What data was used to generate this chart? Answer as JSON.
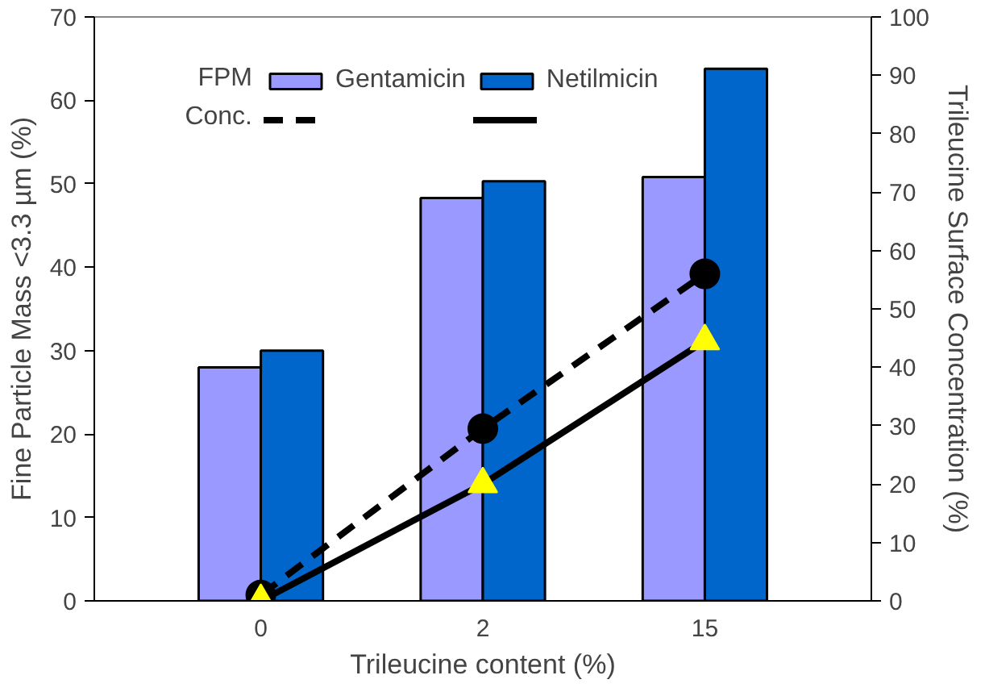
{
  "chart_data": {
    "type": "bar",
    "xlabel": "Trileucine content (%)",
    "ylabel": "Fine Particle Mass <3.3 µm (%)",
    "y2label": "Trileucine Surface Concentration (%)",
    "categories": [
      "0",
      "2",
      "15"
    ],
    "series": [
      {
        "name": "Gentamicin",
        "axis": "y",
        "color": "#9999ff",
        "values": [
          28,
          48.3,
          50.8
        ]
      },
      {
        "name": "Netilmicin",
        "axis": "y",
        "color": "#0066cc",
        "values": [
          30,
          50.3,
          63.8
        ]
      },
      {
        "type": "line",
        "axis": "y2",
        "color": "#000000",
        "line_style": "dashed",
        "marker": "circle",
        "values": [
          1,
          29.5,
          56
        ]
      },
      {
        "type": "line",
        "axis": "y2",
        "color": "#000000",
        "line_style": "solid",
        "marker": "triangle",
        "values": [
          0,
          20,
          44.5
        ]
      }
    ],
    "annotations": [
      "FPM",
      "Conc."
    ],
    "ylim": [
      0,
      70
    ],
    "yticks": [
      0,
      10,
      20,
      30,
      40,
      50,
      60,
      70
    ],
    "y2lim": [
      0,
      100
    ],
    "y2ticks": [
      0,
      10,
      20,
      30,
      40,
      50,
      60,
      70,
      80,
      90,
      100
    ],
    "grid": false,
    "legend": "top"
  }
}
